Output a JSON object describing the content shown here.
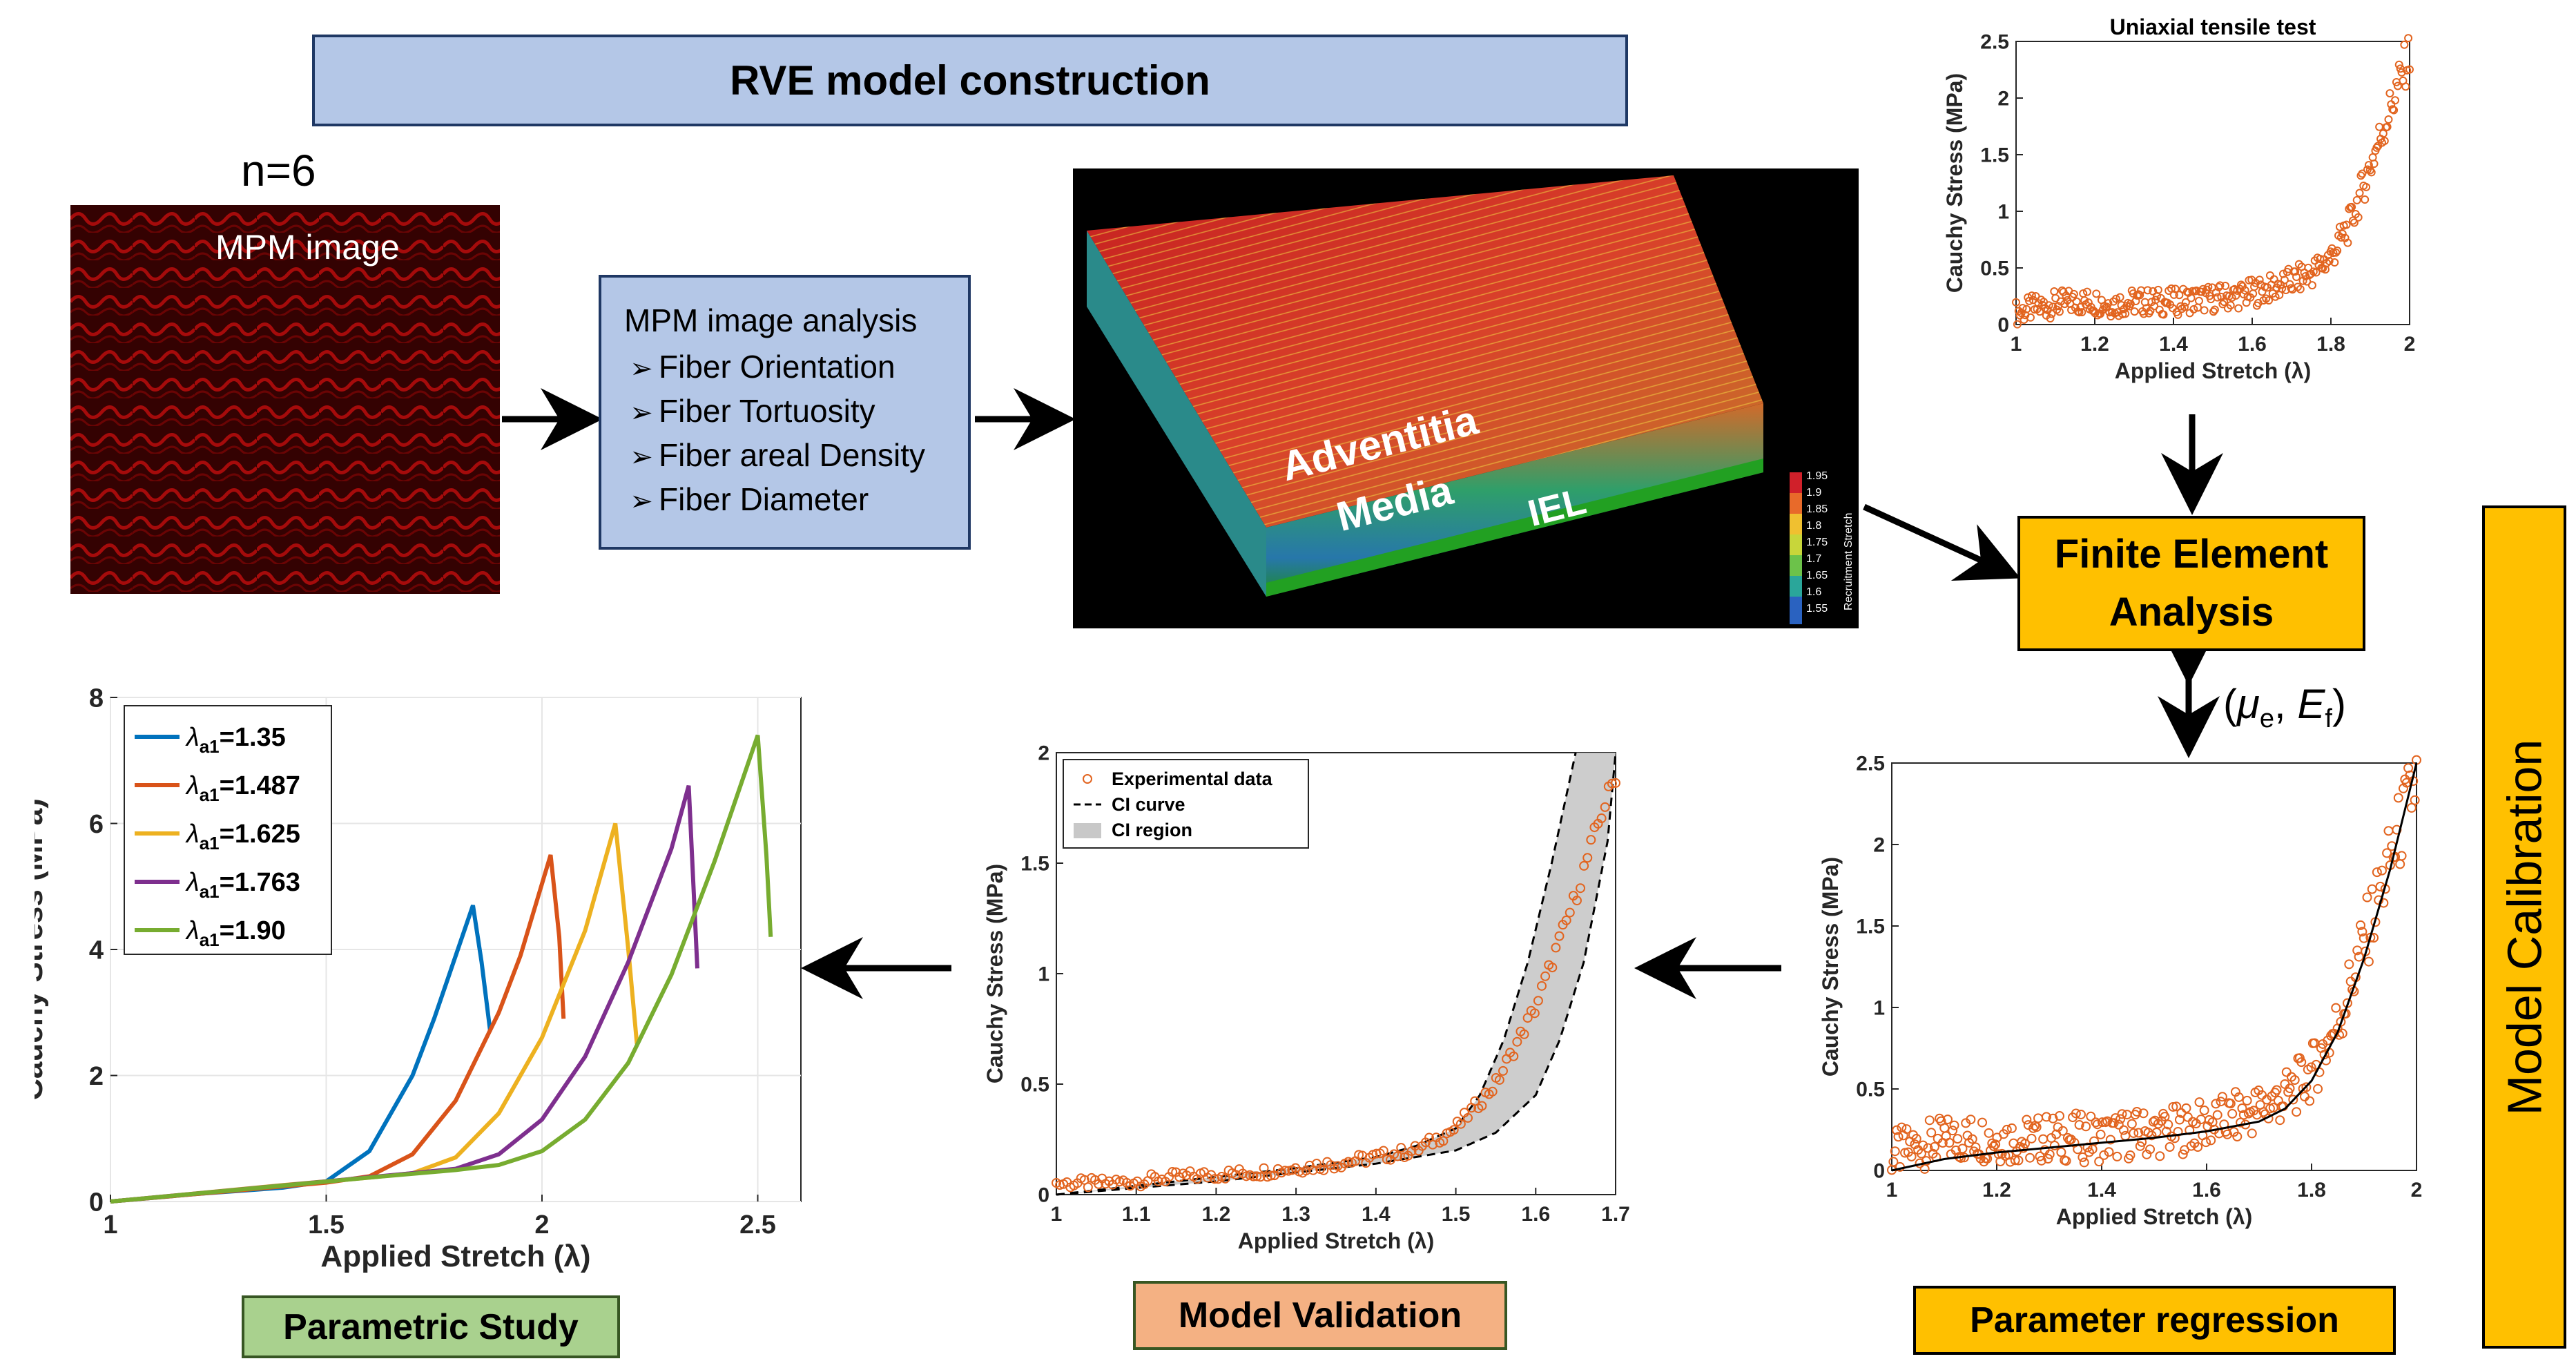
{
  "title": "RVE model construction",
  "n_label": "n=6",
  "mpm_label": "MPM image",
  "analysis": {
    "heading": "MPM image analysis",
    "items": [
      "Fiber Orientation",
      "Fiber Tortuosity",
      "Fiber areal Density",
      "Fiber Diameter"
    ]
  },
  "rve_render": {
    "layers": [
      "Adventitia",
      "Media",
      "IEL"
    ],
    "colorbar_ticks": [
      "1.95",
      "1.9",
      "1.85",
      "1.8",
      "1.75",
      "1.7",
      "1.65",
      "1.6",
      "1.55"
    ],
    "colorbar_label": "Recruitment Stretch"
  },
  "fea_label": [
    "Finite Element",
    "Analysis"
  ],
  "params_label": {
    "open": "(",
    "mu": "μ",
    "mu_sub": "e",
    "sep": ", ",
    "E": "E",
    "E_sub": "f",
    "close": ")"
  },
  "calibration_label": "Model Calibration",
  "parametric_label": "Parametric Study",
  "validation_label": "Model Validation",
  "regression_label": "Parameter regression",
  "chart_data": [
    {
      "id": "uniaxial",
      "type": "scatter",
      "title": "Uniaxial tensile test",
      "xlabel": "Applied Stretch (λ)",
      "ylabel": "Cauchy Stress (MPa)",
      "xlim": [
        1,
        2
      ],
      "ylim": [
        0,
        2.5
      ],
      "xticks": [
        "1",
        "1.2",
        "1.4",
        "1.6",
        "1.8",
        "2"
      ],
      "yticks": [
        "0",
        "0.5",
        "1",
        "1.5",
        "2",
        "2.5"
      ],
      "marker_color": "#e2641f",
      "series": [
        {
          "x": [
            1.0,
            1.05,
            1.1,
            1.15,
            1.2,
            1.25,
            1.3,
            1.35,
            1.4,
            1.45,
            1.5,
            1.55,
            1.6,
            1.65,
            1.7,
            1.75,
            1.8,
            1.85,
            1.9,
            1.95,
            2.0
          ],
          "y": [
            0.1,
            0.15,
            0.18,
            0.2,
            0.2,
            0.18,
            0.2,
            0.2,
            0.2,
            0.22,
            0.23,
            0.25,
            0.28,
            0.32,
            0.38,
            0.45,
            0.6,
            0.9,
            1.4,
            1.9,
            2.4
          ]
        }
      ]
    },
    {
      "id": "regression",
      "type": "scatter",
      "xlabel": "Applied Stretch (λ)",
      "ylabel": "Cauchy Stress (MPa)",
      "xlim": [
        1,
        2
      ],
      "ylim": [
        0,
        2.5
      ],
      "xticks": [
        "1",
        "1.2",
        "1.4",
        "1.6",
        "1.8",
        "2"
      ],
      "yticks": [
        "0",
        "0.5",
        "1",
        "1.5",
        "2",
        "2.5"
      ],
      "marker_color": "#e2641f",
      "series": [
        {
          "x": [
            1.0,
            1.05,
            1.1,
            1.15,
            1.2,
            1.25,
            1.3,
            1.35,
            1.4,
            1.45,
            1.5,
            1.55,
            1.6,
            1.65,
            1.7,
            1.75,
            1.8,
            1.85,
            1.9,
            1.95,
            2.0
          ],
          "y": [
            0.1,
            0.15,
            0.18,
            0.2,
            0.2,
            0.18,
            0.2,
            0.2,
            0.2,
            0.22,
            0.23,
            0.25,
            0.28,
            0.32,
            0.38,
            0.45,
            0.6,
            0.9,
            1.4,
            1.9,
            2.4
          ]
        },
        {
          "x": [
            1.0,
            1.1,
            1.2,
            1.3,
            1.4,
            1.5,
            1.6,
            1.7,
            1.75,
            1.8,
            1.85,
            1.9,
            1.95,
            2.0
          ],
          "y": [
            0.0,
            0.07,
            0.11,
            0.14,
            0.17,
            0.2,
            0.24,
            0.3,
            0.38,
            0.55,
            0.85,
            1.3,
            1.85,
            2.5
          ]
        }
      ]
    },
    {
      "id": "validation",
      "type": "scatter",
      "xlabel": "Applied Stretch (λ)",
      "ylabel": "Cauchy Stress (MPa)",
      "xlim": [
        1,
        1.7
      ],
      "ylim": [
        0,
        2
      ],
      "xticks": [
        "1",
        "1.1",
        "1.2",
        "1.3",
        "1.4",
        "1.5",
        "1.6",
        "1.7"
      ],
      "yticks": [
        "0",
        "0.5",
        "1",
        "1.5",
        "2"
      ],
      "legend": [
        "Experimental data",
        "CI curve",
        "CI region"
      ],
      "series": [
        {
          "x": [
            1.0,
            1.05,
            1.1,
            1.15,
            1.2,
            1.25,
            1.3,
            1.35,
            1.4,
            1.45,
            1.5,
            1.55,
            1.6,
            1.62,
            1.65,
            1.68,
            1.7
          ],
          "y": [
            0.05,
            0.05,
            0.06,
            0.08,
            0.09,
            0.1,
            0.12,
            0.14,
            0.17,
            0.2,
            0.3,
            0.5,
            0.85,
            1.05,
            1.35,
            1.7,
            1.9
          ]
        },
        {
          "x": [
            1.0,
            1.1,
            1.2,
            1.3,
            1.4,
            1.45,
            1.5,
            1.53,
            1.56,
            1.59,
            1.62,
            1.65
          ],
          "y": [
            0.0,
            0.04,
            0.08,
            0.12,
            0.17,
            0.22,
            0.3,
            0.45,
            0.7,
            1.05,
            1.5,
            2.0
          ]
        },
        {
          "x": [
            1.0,
            1.1,
            1.2,
            1.3,
            1.4,
            1.5,
            1.55,
            1.6,
            1.63,
            1.66,
            1.69,
            1.7
          ],
          "y": [
            0.0,
            0.03,
            0.06,
            0.1,
            0.14,
            0.2,
            0.28,
            0.45,
            0.7,
            1.05,
            1.6,
            2.0
          ]
        }
      ]
    },
    {
      "id": "parametric",
      "type": "line",
      "xlabel": "Applied Stretch (λ)",
      "ylabel": "Cauchy Stress (MPa)",
      "xlim": [
        1,
        2.6
      ],
      "ylim": [
        0,
        8
      ],
      "xticks": [
        "1",
        "1.5",
        "2",
        "2.5"
      ],
      "yticks": [
        "0",
        "2",
        "4",
        "6",
        "8"
      ],
      "series": [
        {
          "sym": "λ",
          "sub": "a1",
          "value": "=1.35",
          "color": "#0072bd",
          "x": [
            1.0,
            1.2,
            1.4,
            1.5,
            1.6,
            1.7,
            1.75,
            1.8,
            1.84,
            1.86,
            1.88
          ],
          "y": [
            0.0,
            0.12,
            0.22,
            0.32,
            0.8,
            2.0,
            2.9,
            3.9,
            4.7,
            3.8,
            2.7
          ]
        },
        {
          "sym": "λ",
          "sub": "a1",
          "value": "=1.487",
          "color": "#d95319",
          "x": [
            1.0,
            1.3,
            1.5,
            1.6,
            1.7,
            1.8,
            1.9,
            1.95,
            2.02,
            2.04,
            2.05
          ],
          "y": [
            0.0,
            0.18,
            0.3,
            0.4,
            0.75,
            1.6,
            3.0,
            3.9,
            5.5,
            4.2,
            2.9
          ]
        },
        {
          "sym": "λ",
          "sub": "a1",
          "value": "=1.625",
          "color": "#edb120",
          "x": [
            1.0,
            1.4,
            1.6,
            1.7,
            1.8,
            1.9,
            2.0,
            2.1,
            2.17,
            2.2,
            2.22
          ],
          "y": [
            0.0,
            0.26,
            0.38,
            0.45,
            0.7,
            1.4,
            2.6,
            4.3,
            6.0,
            4.0,
            2.5
          ]
        },
        {
          "sym": "λ",
          "sub": "a1",
          "value": "=1.763",
          "color": "#7e2f8e",
          "x": [
            1.0,
            1.5,
            1.7,
            1.8,
            1.9,
            2.0,
            2.1,
            2.2,
            2.3,
            2.34,
            2.36
          ],
          "y": [
            0.0,
            0.32,
            0.45,
            0.52,
            0.75,
            1.3,
            2.3,
            3.8,
            5.6,
            6.6,
            3.7
          ]
        },
        {
          "sym": "λ",
          "sub": "a1",
          "value": "=1.90",
          "color": "#77ac30",
          "x": [
            1.0,
            1.6,
            1.8,
            1.9,
            2.0,
            2.1,
            2.2,
            2.3,
            2.4,
            2.5,
            2.52,
            2.53
          ],
          "y": [
            0.0,
            0.38,
            0.5,
            0.58,
            0.8,
            1.3,
            2.2,
            3.6,
            5.4,
            7.4,
            5.5,
            4.2
          ]
        }
      ]
    }
  ]
}
